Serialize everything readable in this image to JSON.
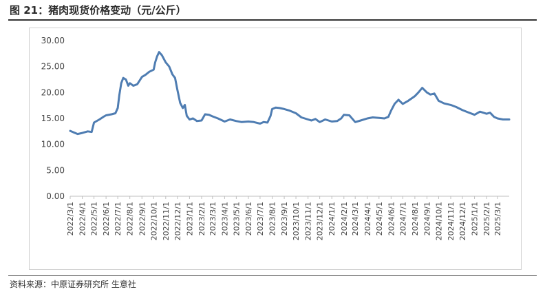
{
  "header": {
    "title": "图 21：猪肉现货价格变动（元/公斤）"
  },
  "footer": {
    "source": "资料来源：中原证券研究所  生意社"
  },
  "colors": {
    "line": "#4f7db2",
    "axis": "#bfbfbf",
    "text": "#444444"
  },
  "chart_data": {
    "type": "line",
    "title": "",
    "xlabel": "",
    "ylabel": "",
    "ylim": [
      0,
      30
    ],
    "yticks": [
      "0.00",
      "5.00",
      "10.00",
      "15.00",
      "20.00",
      "25.00",
      "30.00"
    ],
    "grid": false,
    "legend": "none",
    "x_ticks": [
      "2022/3/1",
      "2022/4/1",
      "2022/5/1",
      "2022/6/1",
      "2022/7/1",
      "2022/8/1",
      "2022/9/1",
      "2022/10/1",
      "2022/11/1",
      "2022/12/1",
      "2023/1/1",
      "2023/2/1",
      "2023/3/1",
      "2023/4/1",
      "2023/5/1",
      "2023/6/1",
      "2023/7/1",
      "2023/8/1",
      "2023/9/1",
      "2023/10/1",
      "2023/11/1",
      "2023/12/1",
      "2024/1/1",
      "2024/2/1",
      "2024/3/1",
      "2024/4/1",
      "2024/5/1",
      "2024/6/1",
      "2024/7/1",
      "2024/8/1",
      "2024/9/1",
      "2024/10/1",
      "2024/11/1",
      "2024/12/1",
      "2025/1/1",
      "2025/2/1",
      "2025/3/1"
    ],
    "series": [
      {
        "color": "#4f7db2",
        "points": [
          [
            "2022/3/1",
            12.6
          ],
          [
            "2022/3/10",
            12.3
          ],
          [
            "2022/3/20",
            12.0
          ],
          [
            "2022/4/1",
            12.2
          ],
          [
            "2022/4/15",
            12.5
          ],
          [
            "2022/4/25",
            12.4
          ],
          [
            "2022/5/1",
            14.2
          ],
          [
            "2022/5/15",
            14.8
          ],
          [
            "2022/5/25",
            15.3
          ],
          [
            "2022/6/1",
            15.6
          ],
          [
            "2022/6/15",
            15.8
          ],
          [
            "2022/6/25",
            16.0
          ],
          [
            "2022/7/1",
            17.0
          ],
          [
            "2022/7/5",
            19.5
          ],
          [
            "2022/7/10",
            21.8
          ],
          [
            "2022/7/15",
            22.8
          ],
          [
            "2022/7/22",
            22.5
          ],
          [
            "2022/7/28",
            21.3
          ],
          [
            "2022/8/1",
            21.8
          ],
          [
            "2022/8/10",
            21.3
          ],
          [
            "2022/8/20",
            21.6
          ],
          [
            "2022/9/1",
            23.0
          ],
          [
            "2022/9/10",
            23.4
          ],
          [
            "2022/9/20",
            24.0
          ],
          [
            "2022/10/1",
            24.4
          ],
          [
            "2022/10/5",
            25.8
          ],
          [
            "2022/10/10",
            27.0
          ],
          [
            "2022/10/15",
            27.8
          ],
          [
            "2022/10/22",
            27.2
          ],
          [
            "2022/11/1",
            25.8
          ],
          [
            "2022/11/10",
            25.0
          ],
          [
            "2022/11/18",
            23.5
          ],
          [
            "2022/11/25",
            22.8
          ],
          [
            "2022/12/1",
            20.5
          ],
          [
            "2022/12/8",
            18.0
          ],
          [
            "2022/12/15",
            17.0
          ],
          [
            "2022/12/20",
            17.6
          ],
          [
            "2022/12/25",
            15.5
          ],
          [
            "2023/1/1",
            14.8
          ],
          [
            "2023/1/10",
            15.0
          ],
          [
            "2023/1/20",
            14.5
          ],
          [
            "2023/2/1",
            14.6
          ],
          [
            "2023/2/10",
            15.8
          ],
          [
            "2023/2/20",
            15.7
          ],
          [
            "2023/3/1",
            15.4
          ],
          [
            "2023/3/15",
            15.0
          ],
          [
            "2023/4/1",
            14.4
          ],
          [
            "2023/4/15",
            14.8
          ],
          [
            "2023/5/1",
            14.5
          ],
          [
            "2023/5/15",
            14.3
          ],
          [
            "2023/6/1",
            14.4
          ],
          [
            "2023/6/15",
            14.3
          ],
          [
            "2023/7/1",
            14.0
          ],
          [
            "2023/7/10",
            14.3
          ],
          [
            "2023/7/20",
            14.2
          ],
          [
            "2023/7/28",
            15.5
          ],
          [
            "2023/8/1",
            16.8
          ],
          [
            "2023/8/10",
            17.1
          ],
          [
            "2023/8/20",
            17.0
          ],
          [
            "2023/9/1",
            16.8
          ],
          [
            "2023/9/15",
            16.5
          ],
          [
            "2023/10/1",
            16.0
          ],
          [
            "2023/10/15",
            15.2
          ],
          [
            "2023/11/1",
            14.8
          ],
          [
            "2023/11/10",
            14.6
          ],
          [
            "2023/11/20",
            14.9
          ],
          [
            "2023/12/1",
            14.3
          ],
          [
            "2023/12/15",
            14.8
          ],
          [
            "2024/1/1",
            14.4
          ],
          [
            "2024/1/15",
            14.5
          ],
          [
            "2024/1/25",
            15.0
          ],
          [
            "2024/2/1",
            15.7
          ],
          [
            "2024/2/15",
            15.6
          ],
          [
            "2024/3/1",
            14.3
          ],
          [
            "2024/3/15",
            14.6
          ],
          [
            "2024/4/1",
            15.0
          ],
          [
            "2024/4/15",
            15.2
          ],
          [
            "2024/5/1",
            15.1
          ],
          [
            "2024/5/15",
            15.0
          ],
          [
            "2024/5/25",
            15.3
          ],
          [
            "2024/6/1",
            16.5
          ],
          [
            "2024/6/10",
            17.8
          ],
          [
            "2024/6/20",
            18.6
          ],
          [
            "2024/7/1",
            17.8
          ],
          [
            "2024/7/15",
            18.4
          ],
          [
            "2024/8/1",
            19.3
          ],
          [
            "2024/8/10",
            20.0
          ],
          [
            "2024/8/20",
            20.9
          ],
          [
            "2024/9/1",
            20.0
          ],
          [
            "2024/9/10",
            19.6
          ],
          [
            "2024/9/20",
            19.8
          ],
          [
            "2024/10/1",
            18.4
          ],
          [
            "2024/10/15",
            17.9
          ],
          [
            "2024/11/1",
            17.6
          ],
          [
            "2024/11/15",
            17.2
          ],
          [
            "2024/12/1",
            16.6
          ],
          [
            "2024/12/15",
            16.2
          ],
          [
            "2025/1/1",
            15.7
          ],
          [
            "2025/1/15",
            16.3
          ],
          [
            "2025/2/1",
            15.9
          ],
          [
            "2025/2/10",
            16.1
          ],
          [
            "2025/2/20",
            15.3
          ],
          [
            "2025/3/1",
            15.0
          ],
          [
            "2025/3/15",
            14.8
          ],
          [
            "2025/3/31",
            14.8
          ]
        ]
      }
    ]
  }
}
